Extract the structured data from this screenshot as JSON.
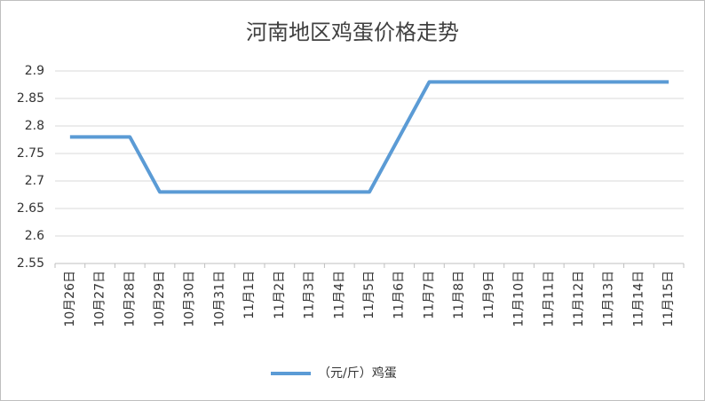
{
  "chart_data": {
    "type": "line",
    "title": "河南地区鸡蛋价格走势",
    "categories": [
      "10月26日",
      "10月27日",
      "10月28日",
      "10月29日",
      "10月30日",
      "10月31日",
      "11月1日",
      "11月2日",
      "11月3日",
      "11月4日",
      "11月5日",
      "11月6日",
      "11月7日",
      "11月8日",
      "11月9日",
      "11月10日",
      "11月11日",
      "11月12日",
      "11月13日",
      "11月14日",
      "11月15日"
    ],
    "series": [
      {
        "name": "（元/斤）鸡蛋",
        "color": "#5b9bd5",
        "values": [
          2.78,
          2.78,
          2.78,
          2.68,
          2.68,
          2.68,
          2.68,
          2.68,
          2.68,
          2.68,
          2.68,
          2.78,
          2.88,
          2.88,
          2.88,
          2.88,
          2.88,
          2.88,
          2.88,
          2.88,
          2.88
        ]
      }
    ],
    "ylim": [
      2.55,
      2.9
    ],
    "yticks": [
      2.55,
      2.6,
      2.65,
      2.7,
      2.75,
      2.8,
      2.85,
      2.9
    ],
    "grid": true,
    "legend": "bottom"
  }
}
